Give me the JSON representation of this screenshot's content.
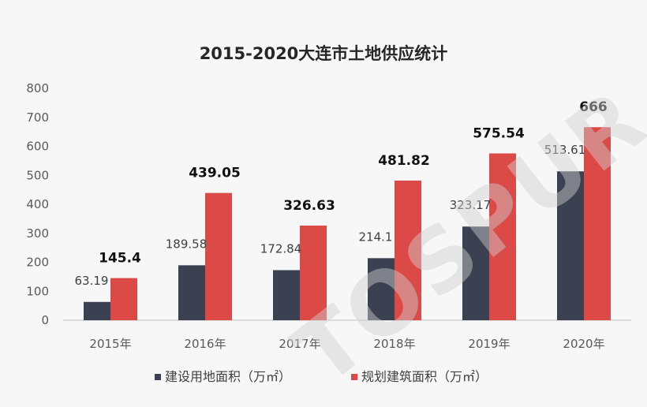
{
  "chart_data": {
    "type": "bar",
    "title": "2015-2020大连市土地供应统计",
    "categories": [
      "2015年",
      "2016年",
      "2017年",
      "2018年",
      "2019年",
      "2020年"
    ],
    "series": [
      {
        "name": "建设用地面积（万㎡）",
        "values": [
          63.19,
          189.58,
          172.84,
          214.1,
          323.17,
          513.61
        ],
        "labels": [
          "63.19",
          "189.58",
          "172.84",
          "214.1",
          "323.17",
          "513.61"
        ],
        "color": "#3b4150"
      },
      {
        "name": "规划建筑面积（万㎡）",
        "values": [
          145.4,
          439.05,
          326.63,
          481.82,
          575.54,
          666
        ],
        "labels": [
          "145.4",
          "439.05",
          "326.63",
          "481.82",
          "575.54",
          "666"
        ],
        "color": "#dc4a47"
      }
    ],
    "ylim": [
      0,
      800
    ],
    "yticks": [
      "0",
      "100",
      "200",
      "300",
      "400",
      "500",
      "600",
      "700",
      "800"
    ],
    "grid": false,
    "legend": "bottom"
  },
  "watermark": "TOSPUR"
}
